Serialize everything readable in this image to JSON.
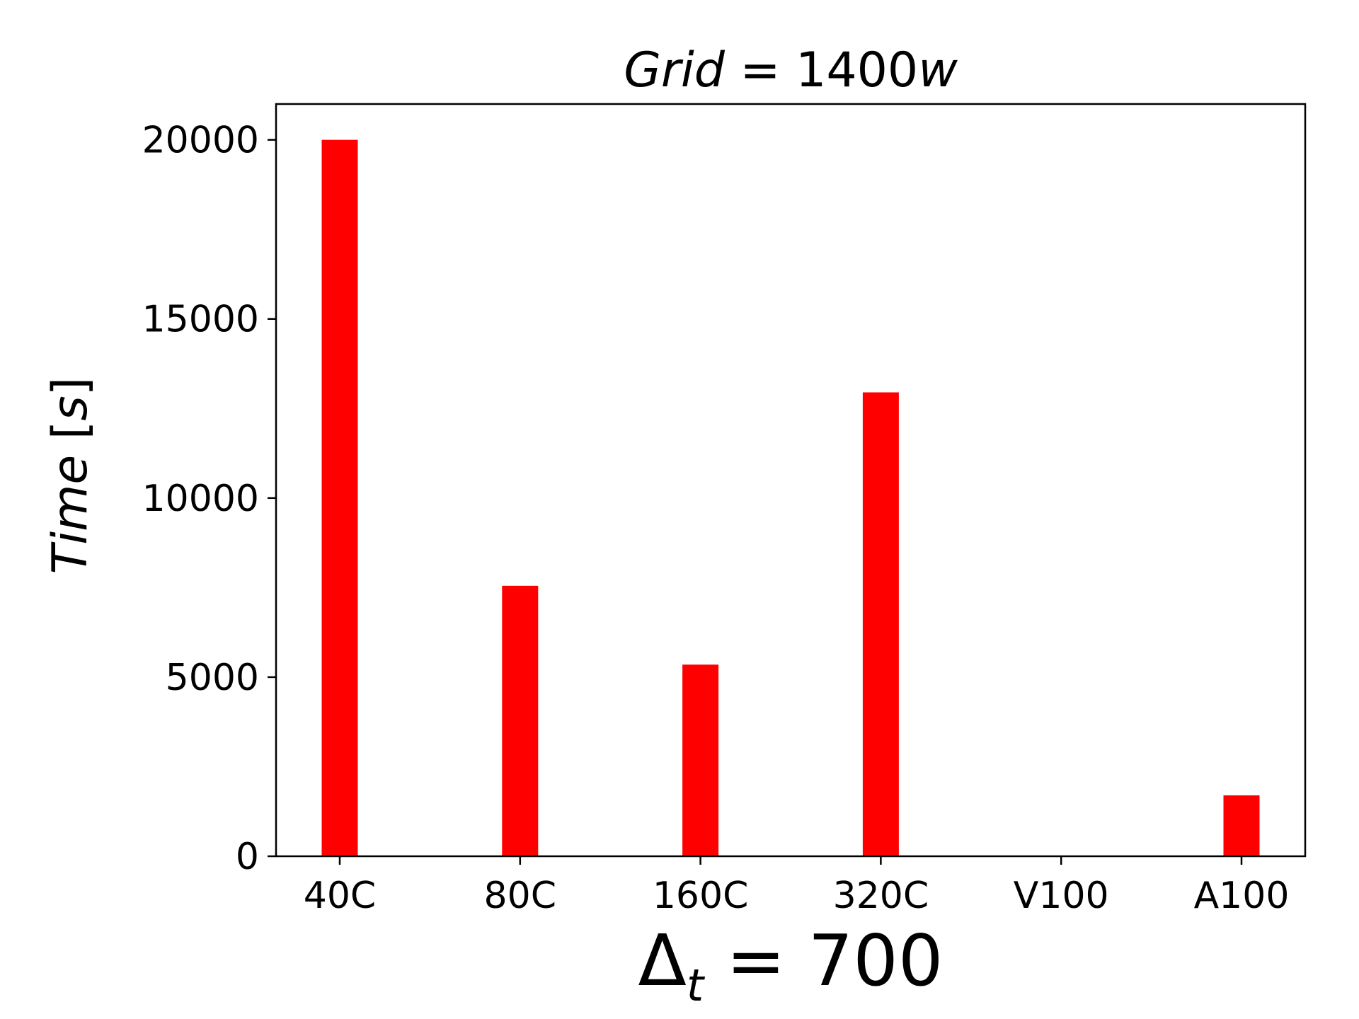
{
  "chart_data": {
    "type": "bar",
    "title": {
      "var": "Grid",
      "eq": " = ",
      "num": "1400",
      "unit": "w"
    },
    "xlabel": {
      "symbol": "Δ",
      "sub": "t",
      "eq": " = ",
      "value": "700"
    },
    "ylabel": {
      "var": "Time",
      "bracket_open": " [",
      "unit": "s",
      "bracket_close": "]"
    },
    "categories": [
      "40C",
      "80C",
      "160C",
      "320C",
      "V100",
      "A100"
    ],
    "values": [
      20000,
      7550,
      5350,
      12950,
      0,
      1700
    ],
    "ylim": [
      0,
      21000
    ],
    "yticks": [
      0,
      5000,
      10000,
      15000,
      20000
    ],
    "ytick_labels": [
      "0",
      "5000",
      "10000",
      "15000",
      "20000"
    ],
    "bar_color": "#ff0000",
    "grid": false,
    "legend": "none"
  }
}
